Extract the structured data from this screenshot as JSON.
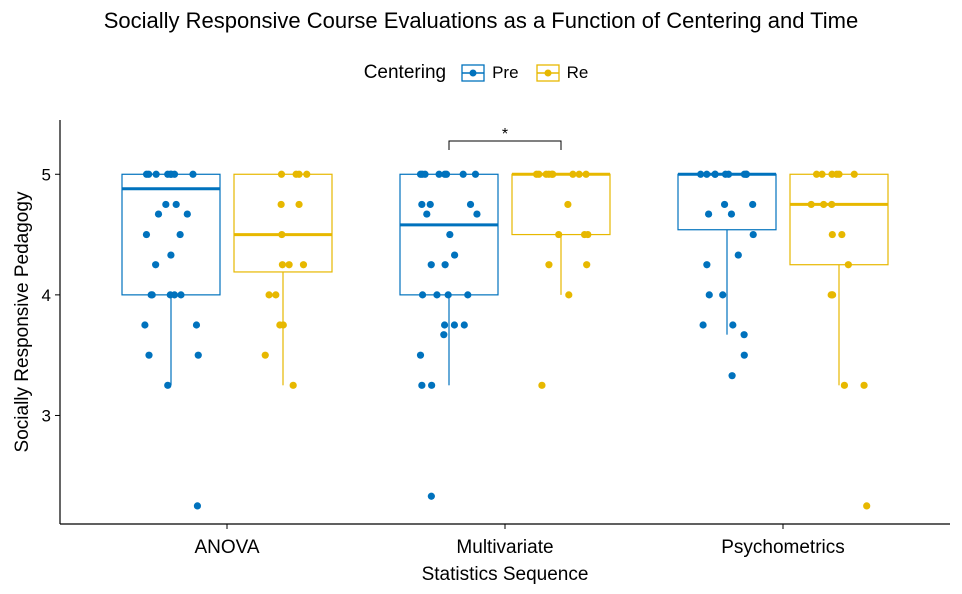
{
  "chart_data": {
    "type": "boxplot",
    "title": "Socially Responsive Course Evaluations as a Function of Centering and Time",
    "xlabel": "Statistics Sequence",
    "ylabel": "Socially Responsive Pedagogy",
    "ylim": [
      2.1,
      5.45
    ],
    "yticks": [
      3,
      4,
      5
    ],
    "categories": [
      "ANOVA",
      "Multivariate",
      "Psychometrics"
    ],
    "legend": {
      "title": "Centering",
      "position": "top",
      "entries": [
        {
          "name": "Pre",
          "color": "#0072BD"
        },
        {
          "name": "Re",
          "color": "#E7B800"
        }
      ]
    },
    "series": [
      {
        "name": "Pre",
        "color": "#0072BD",
        "boxes": [
          {
            "category": "ANOVA",
            "q1": 4.0,
            "median": 4.88,
            "q3": 5.0,
            "whisker_low": 3.25,
            "whisker_high": 5.0
          },
          {
            "category": "Multivariate",
            "q1": 4.0,
            "median": 4.58,
            "q3": 5.0,
            "whisker_low": 3.25,
            "whisker_high": 5.0
          },
          {
            "category": "Psychometrics",
            "q1": 4.54,
            "median": 5.0,
            "q3": 5.0,
            "whisker_low": 3.67,
            "whisker_high": 5.0
          }
        ],
        "points": [
          [
            5,
            5,
            5,
            5,
            5,
            5,
            5,
            5,
            4.75,
            4.75,
            4.67,
            4.67,
            4.5,
            4.5,
            4.33,
            4.25,
            4,
            4,
            4,
            4,
            4,
            3.75,
            3.75,
            3.5,
            3.5,
            3.25,
            2.25
          ],
          [
            5,
            5,
            5,
            5,
            5,
            5,
            5,
            5,
            4.75,
            4.75,
            4.75,
            4.67,
            4.67,
            4.5,
            4.33,
            4.25,
            4.25,
            4,
            4,
            4,
            4,
            3.75,
            3.75,
            3.75,
            3.67,
            3.5,
            3.25,
            3.25,
            2.33
          ],
          [
            5,
            5,
            5,
            5,
            5,
            5,
            5,
            5,
            5,
            4.75,
            4.75,
            4.67,
            4.67,
            4.5,
            4.33,
            4.25,
            4,
            4,
            3.75,
            3.75,
            3.67,
            3.5,
            3.33
          ]
        ]
      },
      {
        "name": "Re",
        "color": "#E7B800",
        "boxes": [
          {
            "category": "ANOVA",
            "q1": 4.19,
            "median": 4.5,
            "q3": 5.0,
            "whisker_low": 3.25,
            "whisker_high": 5.0
          },
          {
            "category": "Multivariate",
            "q1": 4.5,
            "median": 5.0,
            "q3": 5.0,
            "whisker_low": 4.0,
            "whisker_high": 5.0
          },
          {
            "category": "Psychometrics",
            "q1": 4.25,
            "median": 4.75,
            "q3": 5.0,
            "whisker_low": 3.25,
            "whisker_high": 5.0
          }
        ],
        "points": [
          [
            5,
            5,
            5,
            5,
            4.75,
            4.75,
            4.5,
            4.25,
            4.25,
            4.25,
            4,
            4,
            3.75,
            3.75,
            3.5,
            3.25
          ],
          [
            5,
            5,
            5,
            5,
            5,
            5,
            5,
            5,
            5,
            4.75,
            4.5,
            4.5,
            4.5,
            4.25,
            4.25,
            4,
            3.25
          ],
          [
            5,
            5,
            5,
            5,
            5,
            5,
            4.75,
            4.75,
            4.75,
            4.5,
            4.5,
            4.25,
            4,
            4,
            4,
            3.25,
            3.25,
            2.25
          ]
        ]
      }
    ],
    "annotations": [
      {
        "category": "Multivariate",
        "text": "*",
        "type": "significance-bracket"
      }
    ]
  }
}
